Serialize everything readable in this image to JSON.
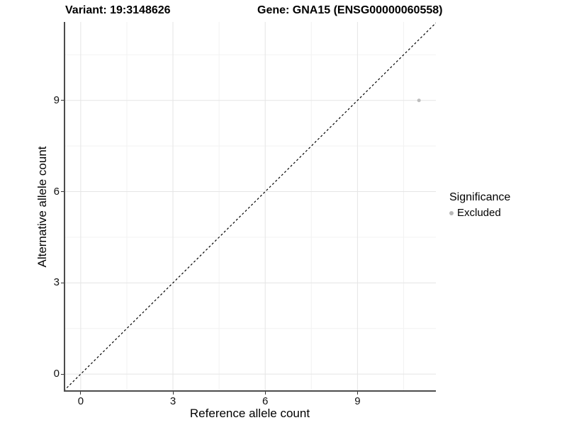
{
  "chart_data": {
    "type": "scatter",
    "titles": {
      "left": "Variant: 19:3148626",
      "right": "Gene: GNA15 (ENSG00000060558)"
    },
    "xlabel": "Reference allele count",
    "ylabel": "Alternative allele count",
    "xlim": [
      -0.55,
      11.55
    ],
    "ylim": [
      -0.58,
      11.58
    ],
    "x_ticks": [
      0,
      3,
      6,
      9
    ],
    "y_ticks": [
      0,
      3,
      6,
      9
    ],
    "x_minor_ticks": [
      1.5,
      4.5,
      7.5,
      10.5
    ],
    "y_minor_ticks": [
      1.5,
      4.5,
      7.5,
      10.5
    ],
    "grid": "major+minor",
    "reference_line": {
      "kind": "identity y=x",
      "style": "dashed",
      "color": "#000000"
    },
    "series": [
      {
        "name": "Excluded",
        "color": "#bdbdbd",
        "points": [
          {
            "x": 11,
            "y": 9
          }
        ]
      }
    ],
    "legend": {
      "title": "Significance",
      "position": "right",
      "entries": [
        {
          "label": "Excluded",
          "color": "#b8b8b8"
        }
      ]
    },
    "colors": {
      "axis_line": "#4b4b4b",
      "tick_mark": "#333333",
      "grid_major": "#e5e5e5",
      "grid_minor": "#f2f2f2",
      "background": "#ffffff",
      "text": "#000000"
    }
  }
}
